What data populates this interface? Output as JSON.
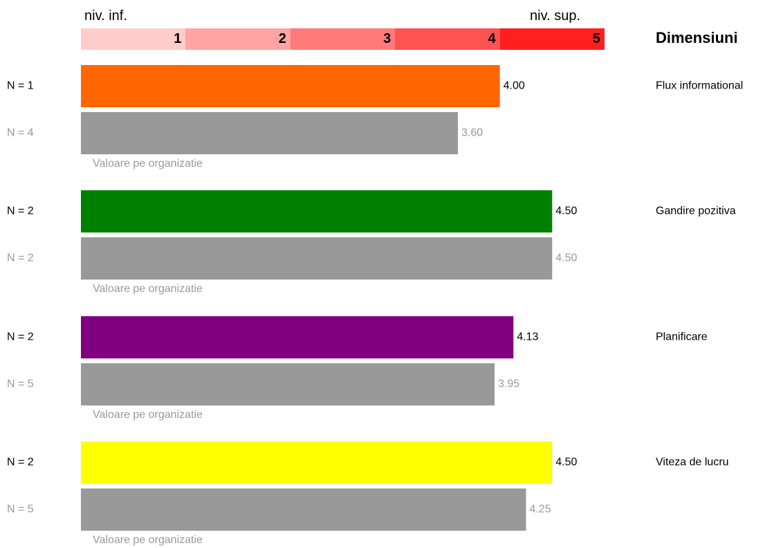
{
  "scale": {
    "low_label": "niv. inf.",
    "high_label": "niv. sup.",
    "levels": [
      {
        "label": "1",
        "color": "#ffcccc"
      },
      {
        "label": "2",
        "color": "#ffa3a3"
      },
      {
        "label": "3",
        "color": "#ff7a7a"
      },
      {
        "label": "4",
        "color": "#ff5252"
      },
      {
        "label": "5",
        "color": "#ff1f1f"
      }
    ]
  },
  "dimensions_header": "Dimensiuni",
  "chart_data": {
    "type": "bar",
    "orientation": "horizontal",
    "xlim": [
      0,
      5
    ],
    "categories": [
      "Flux informational",
      "Gandire pozitiva",
      "Planificare",
      "Viteza de lucru"
    ],
    "groups": [
      {
        "dimension": "Flux informational",
        "color": "#ff6600",
        "value": 4.0,
        "value_label": "4.00",
        "n_label": "N = 1",
        "org_value": 3.6,
        "org_value_label": "3.60",
        "org_n_label": "N = 4",
        "org_caption": "Valoare pe organizatie"
      },
      {
        "dimension": "Gandire pozitiva",
        "color": "#008000",
        "value": 4.5,
        "value_label": "4.50",
        "n_label": "N = 2",
        "org_value": 4.5,
        "org_value_label": "4.50",
        "org_n_label": "N = 2",
        "org_caption": "Valoare pe organizatie"
      },
      {
        "dimension": "Planificare",
        "color": "#800080",
        "value": 4.13,
        "value_label": "4.13",
        "n_label": "N = 2",
        "org_value": 3.95,
        "org_value_label": "3.95",
        "org_n_label": "N = 5",
        "org_caption": "Valoare pe organizatie"
      },
      {
        "dimension": "Viteza de lucru",
        "color": "#ffff00",
        "value": 4.5,
        "value_label": "4.50",
        "n_label": "N = 2",
        "org_value": 4.25,
        "org_value_label": "4.25",
        "org_n_label": "N = 5",
        "org_caption": "Valoare pe organizatie"
      }
    ],
    "org_color": "#999999",
    "grid": false,
    "legend": "none"
  }
}
